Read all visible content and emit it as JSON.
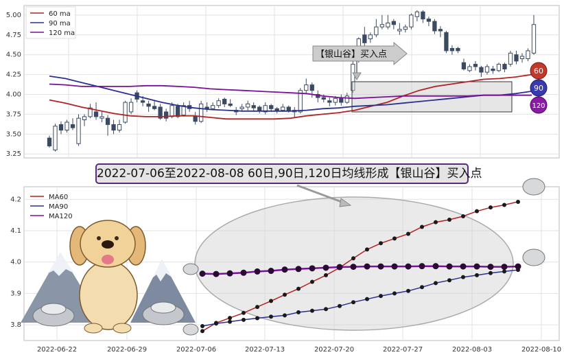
{
  "title": "2022-07-06至2022-08-08 60日,90日,120日均线形成【银山谷】买入点",
  "top_chart": {
    "legend": [
      "60 ma",
      "90 ma",
      "120 ma"
    ],
    "annotation": "【银山谷】买入点",
    "badges": [
      "60",
      "90",
      "120"
    ],
    "yticks": [
      "3.25",
      "3.50",
      "3.75",
      "4.00",
      "4.25",
      "4.50",
      "4.75",
      "5.00"
    ]
  },
  "bottom_chart": {
    "legend": [
      "MA60",
      "MA90",
      "MA120"
    ],
    "yticks": [
      "3.8",
      "3.9",
      "4.0",
      "4.1",
      "4.2"
    ],
    "xticks": [
      "2022-06-22",
      "2022-06-29",
      "2022-07-06",
      "2022-07-13",
      "2022-07-20",
      "2022-07-27",
      "2022-08-03",
      "2022-08-10"
    ]
  },
  "colors": {
    "ma60": "#b22222",
    "ma90": "#2b2f8f",
    "ma120": "#7a0f9a",
    "candle": "#3b4a63"
  },
  "chart_data": [
    {
      "type": "candlestick",
      "title": "",
      "ylim": [
        3.2,
        5.12
      ],
      "candles": [
        [
          3.45,
          3.35,
          3.48,
          3.33
        ],
        [
          3.3,
          3.6,
          3.63,
          3.28
        ],
        [
          3.62,
          3.55,
          3.66,
          3.5
        ],
        [
          3.55,
          3.65,
          3.68,
          3.52
        ],
        [
          3.62,
          3.58,
          3.7,
          3.55
        ],
        [
          3.38,
          3.7,
          3.75,
          3.35
        ],
        [
          3.68,
          3.72,
          3.75,
          3.6
        ],
        [
          3.72,
          3.83,
          3.88,
          3.7
        ],
        [
          3.78,
          3.72,
          3.9,
          3.68
        ],
        [
          3.7,
          3.72,
          3.78,
          3.65
        ],
        [
          3.7,
          3.62,
          3.74,
          3.48
        ],
        [
          3.62,
          3.55,
          3.68,
          3.5
        ],
        [
          3.55,
          3.62,
          3.68,
          3.52
        ],
        [
          3.65,
          3.9,
          3.92,
          3.63
        ],
        [
          3.78,
          3.9,
          3.95,
          3.75
        ],
        [
          4.02,
          3.94,
          4.05,
          3.9
        ],
        [
          3.92,
          3.9,
          3.98,
          3.85
        ],
        [
          3.88,
          3.85,
          3.92,
          3.78
        ],
        [
          3.85,
          3.82,
          3.92,
          3.8
        ],
        [
          3.84,
          3.7,
          3.88,
          3.68
        ],
        [
          3.78,
          3.7,
          3.82,
          3.66
        ],
        [
          3.72,
          3.86,
          3.9,
          3.7
        ],
        [
          3.85,
          3.72,
          3.88,
          3.7
        ],
        [
          3.74,
          3.86,
          3.9,
          3.72
        ],
        [
          3.86,
          3.82,
          3.92,
          3.78
        ],
        [
          3.72,
          3.66,
          3.78,
          3.62
        ],
        [
          3.66,
          3.88,
          3.92,
          3.64
        ],
        [
          3.84,
          3.82,
          3.9,
          3.78
        ],
        [
          3.82,
          3.86,
          3.9,
          3.8
        ],
        [
          3.86,
          3.92,
          3.95,
          3.83
        ],
        [
          3.94,
          3.88,
          3.96,
          3.84
        ],
        [
          3.88,
          3.86,
          3.94,
          3.84
        ],
        [
          3.8,
          3.78,
          3.84,
          3.74
        ],
        [
          3.82,
          3.84,
          3.88,
          3.78
        ],
        [
          3.84,
          3.88,
          3.92,
          3.8
        ],
        [
          3.86,
          3.83,
          3.9,
          3.78
        ],
        [
          3.84,
          3.8,
          3.86,
          3.76
        ],
        [
          3.78,
          3.86,
          3.9,
          3.75
        ],
        [
          3.86,
          3.82,
          3.88,
          3.78
        ],
        [
          3.82,
          3.8,
          3.84,
          3.76
        ],
        [
          3.8,
          3.84,
          3.88,
          3.78
        ],
        [
          3.84,
          3.8,
          3.86,
          3.77
        ],
        [
          3.78,
          3.8,
          3.84,
          3.7
        ],
        [
          3.78,
          4.05,
          4.08,
          3.76
        ],
        [
          4.05,
          4.12,
          4.2,
          4.0
        ],
        [
          4.12,
          4.05,
          4.15,
          3.96
        ],
        [
          4.0,
          3.96,
          4.05,
          3.9
        ],
        [
          3.96,
          3.94,
          4.0,
          3.9
        ],
        [
          3.92,
          3.9,
          3.96,
          3.85
        ],
        [
          3.9,
          3.95,
          3.98,
          3.86
        ],
        [
          3.95,
          3.9,
          4.0,
          3.86
        ],
        [
          3.9,
          3.98,
          4.02,
          3.88
        ],
        [
          4.05,
          4.38,
          4.42,
          4.02
        ],
        [
          4.42,
          4.7,
          4.72,
          4.4
        ],
        [
          4.75,
          4.65,
          4.85,
          4.6
        ],
        [
          4.7,
          4.75,
          4.78,
          4.65
        ],
        [
          4.75,
          4.85,
          4.95,
          4.72
        ],
        [
          4.85,
          4.88,
          5.0,
          4.82
        ],
        [
          4.85,
          4.9,
          5.0,
          4.82
        ],
        [
          4.92,
          4.88,
          4.95,
          4.82
        ],
        [
          4.8,
          4.82,
          4.9,
          4.75
        ],
        [
          4.82,
          4.85,
          4.88,
          4.78
        ],
        [
          4.85,
          5.0,
          5.02,
          4.82
        ],
        [
          4.98,
          5.04,
          5.06,
          4.92
        ],
        [
          5.04,
          4.95,
          5.06,
          4.9
        ],
        [
          4.95,
          4.92,
          4.98,
          4.86
        ],
        [
          4.92,
          4.8,
          4.95,
          4.76
        ],
        [
          4.82,
          4.8,
          4.86,
          4.72
        ],
        [
          4.78,
          4.55,
          4.8,
          4.52
        ],
        [
          4.58,
          4.55,
          4.62,
          4.5
        ],
        [
          4.58,
          4.55,
          4.6,
          4.52
        ],
        [
          4.4,
          4.32,
          4.45,
          4.3
        ],
        [
          4.3,
          4.35,
          4.38,
          4.28
        ],
        [
          4.38,
          4.35,
          4.42,
          4.3
        ],
        [
          4.34,
          4.28,
          4.36,
          4.22
        ],
        [
          4.28,
          4.35,
          4.38,
          4.25
        ],
        [
          4.32,
          4.3,
          4.36,
          4.26
        ],
        [
          4.3,
          4.38,
          4.4,
          4.28
        ],
        [
          4.38,
          4.32,
          4.4,
          4.28
        ],
        [
          4.38,
          4.52,
          4.55,
          4.35
        ],
        [
          4.5,
          4.42,
          4.55,
          4.38
        ],
        [
          4.45,
          4.48,
          4.52,
          4.4
        ],
        [
          4.45,
          4.55,
          4.58,
          4.42
        ],
        [
          4.52,
          4.88,
          5.0,
          4.5
        ]
      ],
      "series": [
        {
          "name": "60 ma",
          "values": [
            3.93,
            3.89,
            3.84,
            3.8,
            3.76,
            3.73,
            3.72,
            3.72,
            3.73,
            3.73,
            3.71,
            3.69,
            3.69,
            3.69,
            3.69,
            3.7,
            3.73,
            3.75,
            3.77,
            3.8,
            3.85,
            3.9,
            3.98,
            4.05,
            4.1,
            4.13,
            4.16,
            4.19,
            4.2,
            4.22,
            4.25
          ]
        },
        {
          "name": "90 ma",
          "values": [
            4.23,
            4.2,
            4.15,
            4.1,
            4.05,
            4.0,
            3.95,
            3.9,
            3.86,
            3.83,
            3.81,
            3.8,
            3.79,
            3.79,
            3.79,
            3.79,
            3.8,
            3.82,
            3.83,
            3.85,
            3.86,
            3.87,
            3.89,
            3.91,
            3.93,
            3.95,
            3.97,
            3.99,
            3.99,
            4.01,
            4.04
          ]
        },
        {
          "name": "120 ma",
          "values": [
            4.13,
            4.12,
            4.1,
            4.1,
            4.1,
            4.1,
            4.11,
            4.11,
            4.1,
            4.09,
            4.07,
            4.06,
            4.05,
            4.04,
            4.03,
            4.02,
            4.01,
            3.98,
            3.96,
            3.95,
            3.96,
            3.97,
            3.98,
            3.98,
            3.98,
            3.98,
            3.98,
            3.99,
            3.99,
            3.99,
            3.99
          ]
        }
      ]
    },
    {
      "type": "line",
      "title": "",
      "ylim": [
        3.75,
        4.24
      ],
      "x": [
        "2022-07-06",
        "2022-07-07",
        "2022-07-08",
        "2022-07-11",
        "2022-07-12",
        "2022-07-13",
        "2022-07-14",
        "2022-07-15",
        "2022-07-18",
        "2022-07-19",
        "2022-07-20",
        "2022-07-21",
        "2022-07-22",
        "2022-07-25",
        "2022-07-26",
        "2022-07-27",
        "2022-07-28",
        "2022-07-29",
        "2022-08-01",
        "2022-08-02",
        "2022-08-03",
        "2022-08-04",
        "2022-08-05",
        "2022-08-08"
      ],
      "series": [
        {
          "name": "MA60",
          "values": [
            3.78,
            3.806,
            3.822,
            3.838,
            3.857,
            3.876,
            3.896,
            3.915,
            3.937,
            3.958,
            3.982,
            4.012,
            4.04,
            4.06,
            4.075,
            4.09,
            4.112,
            4.127,
            4.135,
            4.146,
            4.162,
            4.174,
            4.182,
            4.192
          ]
        },
        {
          "name": "MA90",
          "values": [
            3.796,
            3.804,
            3.81,
            3.816,
            3.821,
            3.826,
            3.83,
            3.84,
            3.845,
            3.85,
            3.86,
            3.872,
            3.882,
            3.892,
            3.9,
            3.908,
            3.92,
            3.933,
            3.942,
            3.952,
            3.958,
            3.965,
            3.97,
            3.975
          ]
        },
        {
          "name": "MA120",
          "values": [
            3.963,
            3.962,
            3.964,
            3.966,
            3.97,
            3.972,
            3.976,
            3.978,
            3.98,
            3.982,
            3.984,
            3.985,
            3.986,
            3.986,
            3.986,
            3.986,
            3.987,
            3.987,
            3.986,
            3.986,
            3.986,
            3.985,
            3.985,
            3.986
          ]
        }
      ]
    }
  ]
}
